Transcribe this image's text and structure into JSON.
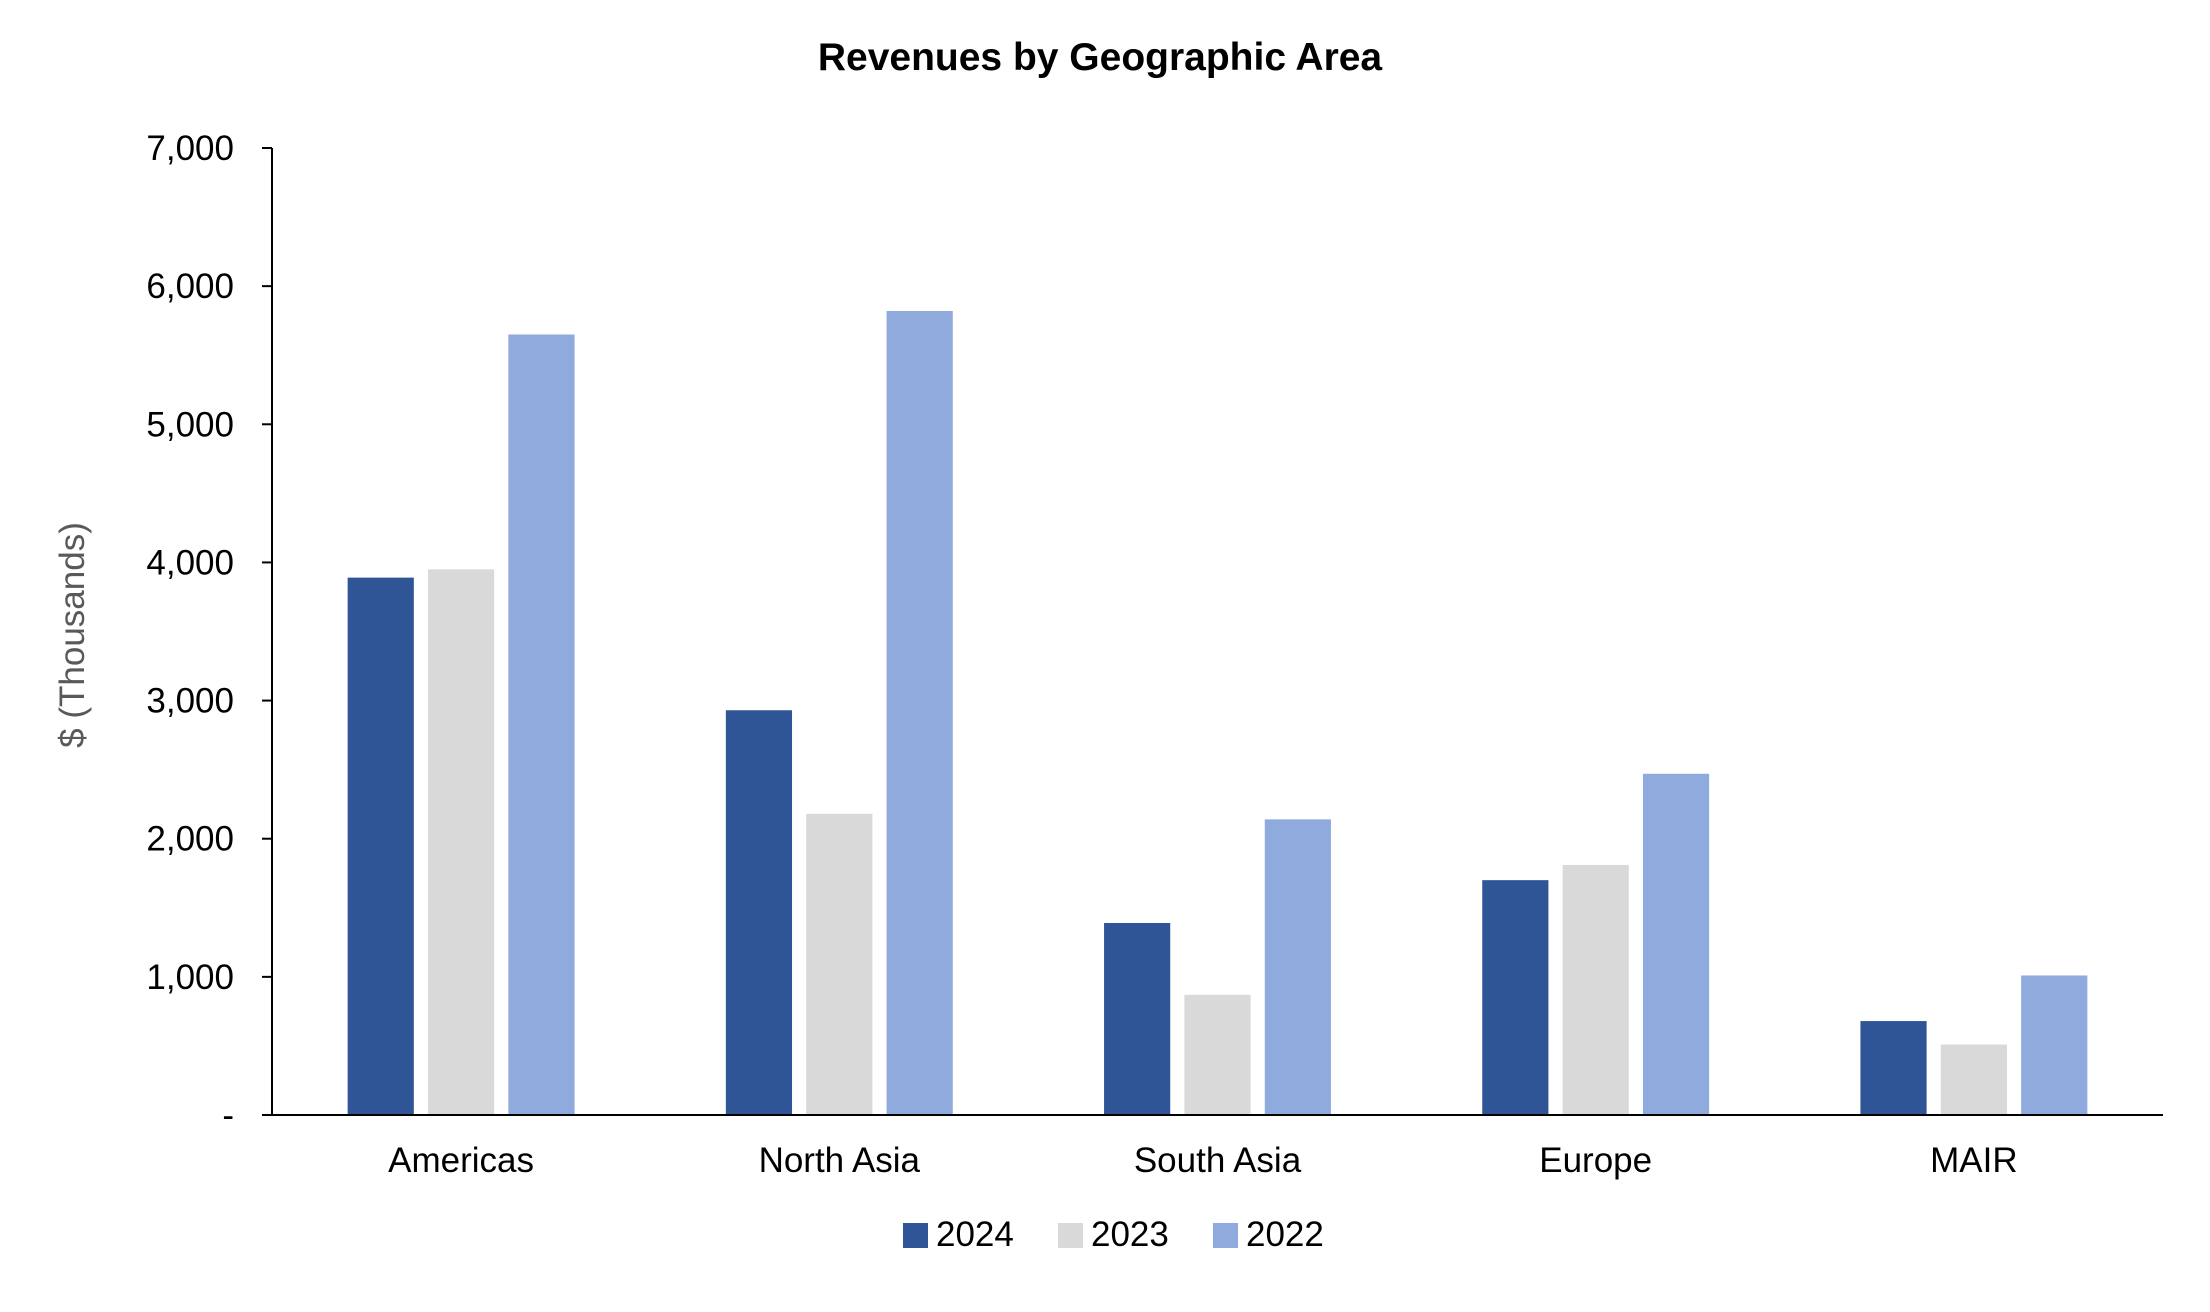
{
  "chart_data": {
    "type": "bar",
    "title": "Revenues by Geographic Area",
    "xlabel": "",
    "ylabel": "$ (Thousands)",
    "ylim": [
      0,
      7000
    ],
    "yticks": [
      0,
      1000,
      2000,
      3000,
      4000,
      5000,
      6000,
      7000
    ],
    "ytick_labels": [
      "-",
      "1,000",
      "2,000",
      "3,000",
      "4,000",
      "5,000",
      "6,000",
      "7,000"
    ],
    "grid": false,
    "legend_position": "bottom-center",
    "categories": [
      "Americas",
      "North Asia",
      "South Asia",
      "Europe",
      "MAIR"
    ],
    "series": [
      {
        "name": "2024",
        "color": "#2F5597",
        "values": [
          3890,
          2930,
          1390,
          1700,
          680
        ]
      },
      {
        "name": "2023",
        "color": "#D9D9D9",
        "values": [
          3950,
          2180,
          870,
          1810,
          510
        ]
      },
      {
        "name": "2022",
        "color": "#8FAADC",
        "values": [
          5650,
          5820,
          2140,
          2470,
          1010
        ]
      }
    ]
  }
}
